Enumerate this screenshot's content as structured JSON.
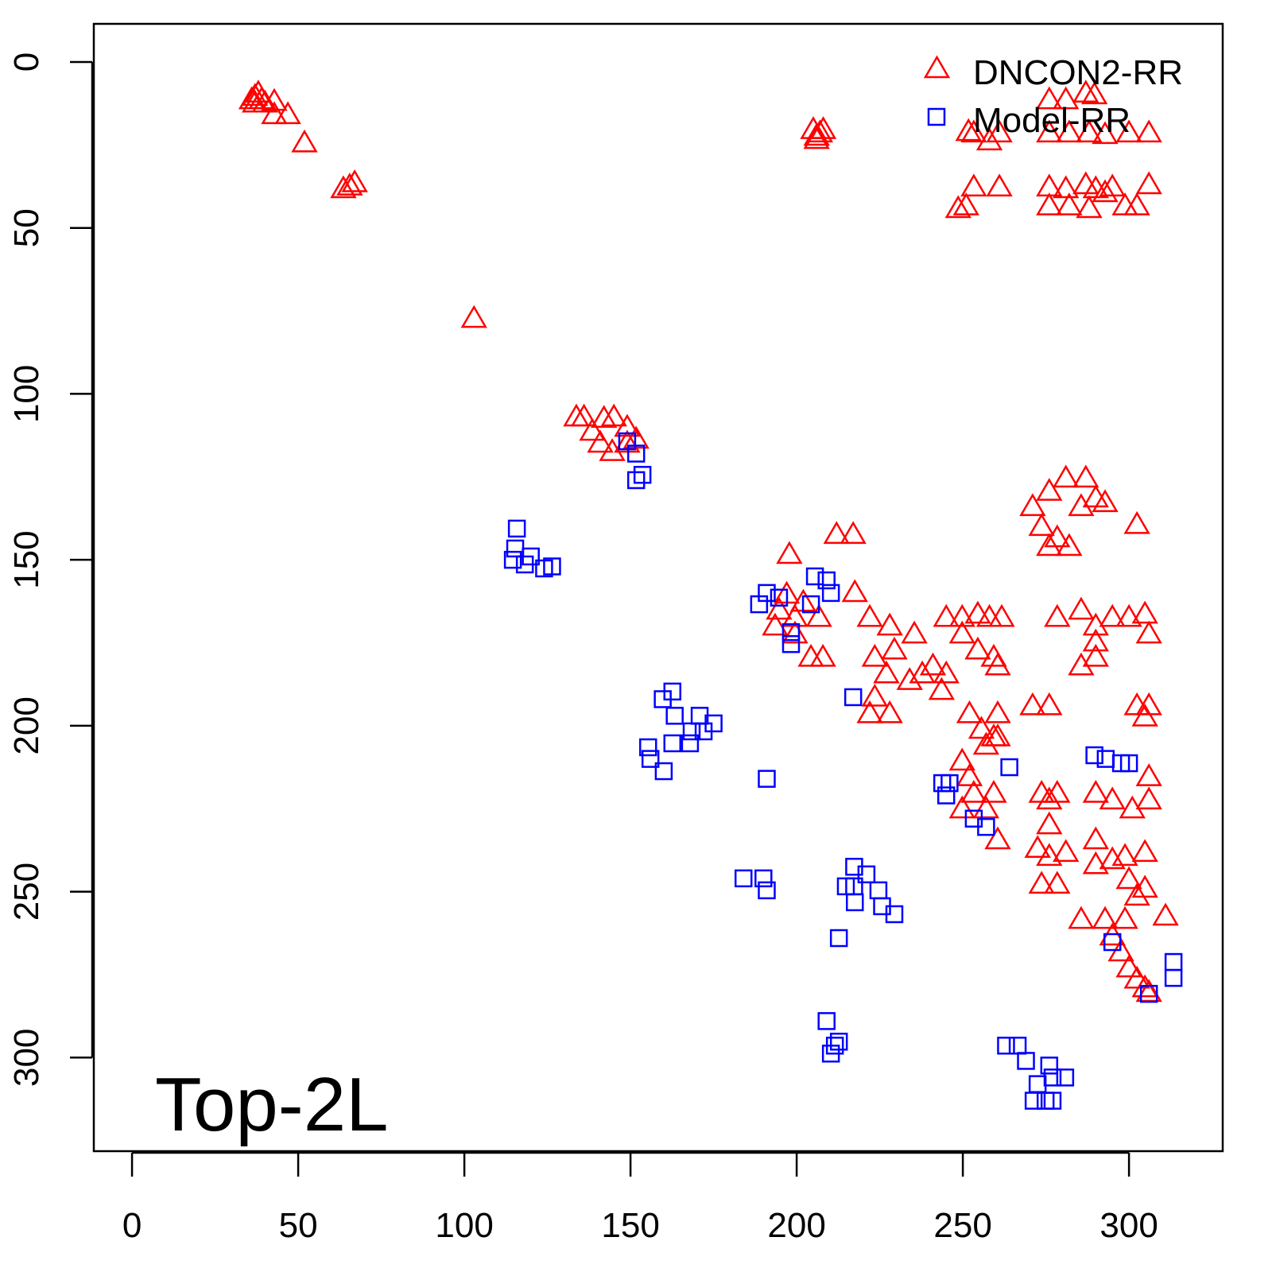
{
  "chart_data": {
    "type": "scatter",
    "title": "",
    "annotation": "Top-2L",
    "xlabel": "",
    "ylabel": "",
    "xlim": [
      -11.5,
      328.2
    ],
    "ylim": [
      328.2,
      -11.5
    ],
    "y_reversed": true,
    "grid": false,
    "legend_position": "top-right",
    "xticks": [
      0,
      50,
      100,
      150,
      200,
      250,
      300
    ],
    "yticks": [
      0,
      50,
      100,
      150,
      200,
      250,
      300
    ],
    "xtick_labels": [
      "0",
      "50",
      "100",
      "150",
      "200",
      "250",
      "300"
    ],
    "ytick_labels": [
      "0",
      "50",
      "100",
      "150",
      "200",
      "250",
      "300"
    ],
    "series": [
      {
        "name": "DNCON2-RR",
        "marker": "triangle",
        "color": "#ff0000",
        "points": [
          [
            36,
            12
          ],
          [
            37,
            11
          ],
          [
            38,
            10
          ],
          [
            39,
            12
          ],
          [
            40,
            13
          ],
          [
            37,
            13
          ],
          [
            42.8,
            12.5
          ],
          [
            42.8,
            16.5
          ],
          [
            46.9,
            16.5
          ],
          [
            51.9,
            25
          ],
          [
            65.5,
            38
          ],
          [
            63.6,
            38.8
          ],
          [
            67,
            37
          ],
          [
            102.9,
            77.9
          ],
          [
            205,
            21
          ],
          [
            206,
            23
          ],
          [
            207,
            22
          ],
          [
            208,
            21
          ],
          [
            206,
            24
          ],
          [
            133.7,
            107.6
          ],
          [
            136,
            107.6
          ],
          [
            142,
            108
          ],
          [
            145,
            107.6
          ],
          [
            149,
            110.7
          ],
          [
            140.9,
            115.5
          ],
          [
            144.5,
            118
          ],
          [
            149,
            115.5
          ],
          [
            151.7,
            114.3
          ],
          [
            138.5,
            111.9
          ],
          [
            251.7,
            21.6
          ],
          [
            253.3,
            22
          ],
          [
            258,
            24.4
          ],
          [
            261,
            22
          ],
          [
            251,
            44
          ],
          [
            248.6,
            44.8
          ],
          [
            253.3,
            38.3
          ],
          [
            261,
            38.3
          ],
          [
            276,
            12
          ],
          [
            281,
            12
          ],
          [
            287,
            10
          ],
          [
            289.6,
            10.5
          ],
          [
            276,
            22
          ],
          [
            282,
            22
          ],
          [
            288,
            22
          ],
          [
            292.8,
            22.5
          ],
          [
            300,
            22
          ],
          [
            306,
            22
          ],
          [
            276,
            38.3
          ],
          [
            281,
            38.8
          ],
          [
            287,
            37.6
          ],
          [
            290,
            38.8
          ],
          [
            292.8,
            40
          ],
          [
            282,
            44
          ],
          [
            288,
            44.8
          ],
          [
            298.8,
            44
          ],
          [
            302.4,
            44
          ],
          [
            295,
            38.3
          ],
          [
            306,
            37.6
          ],
          [
            276,
            44
          ],
          [
            212,
            143
          ],
          [
            217,
            143
          ],
          [
            197.8,
            149
          ],
          [
            217.5,
            160.5
          ],
          [
            271,
            134.6
          ],
          [
            276,
            130
          ],
          [
            281,
            126
          ],
          [
            287,
            126
          ],
          [
            290,
            132
          ],
          [
            273.7,
            140.6
          ],
          [
            278.4,
            144
          ],
          [
            276,
            146.6
          ],
          [
            282,
            146.6
          ],
          [
            302.4,
            140
          ],
          [
            285.6,
            134.6
          ],
          [
            292.8,
            133.4
          ],
          [
            194.7,
            165.8
          ],
          [
            199.5,
            168
          ],
          [
            202,
            163.4
          ],
          [
            206.7,
            168
          ],
          [
            193.5,
            170.6
          ],
          [
            199.5,
            173
          ],
          [
            204.3,
            180
          ],
          [
            207.9,
            180
          ],
          [
            197,
            161
          ],
          [
            222,
            168
          ],
          [
            228,
            170.6
          ],
          [
            223.5,
            180
          ],
          [
            227,
            185
          ],
          [
            223.5,
            192
          ],
          [
            228,
            197
          ],
          [
            222,
            197
          ],
          [
            229.4,
            177.8
          ],
          [
            235.4,
            173
          ],
          [
            234,
            187
          ],
          [
            237.8,
            185
          ],
          [
            241,
            182.6
          ],
          [
            245,
            185
          ],
          [
            243.6,
            190
          ],
          [
            245,
            168
          ],
          [
            249.8,
            168
          ],
          [
            254.5,
            167
          ],
          [
            258,
            168
          ],
          [
            261.7,
            168
          ],
          [
            249.8,
            173
          ],
          [
            254.5,
            177.8
          ],
          [
            259.3,
            180
          ],
          [
            260.5,
            182.6
          ],
          [
            252,
            197
          ],
          [
            255.6,
            201.7
          ],
          [
            260.5,
            197
          ],
          [
            260.5,
            204
          ],
          [
            257,
            206.5
          ],
          [
            249.8,
            211.3
          ],
          [
            252,
            216
          ],
          [
            253.3,
            221
          ],
          [
            257,
            225.7
          ],
          [
            259.3,
            221
          ],
          [
            249.8,
            225.7
          ],
          [
            260.5,
            235
          ],
          [
            259.3,
            204
          ],
          [
            273.7,
            221
          ],
          [
            276,
            223
          ],
          [
            278.4,
            221
          ],
          [
            276,
            230.5
          ],
          [
            272.5,
            237.6
          ],
          [
            276,
            240
          ],
          [
            281,
            238.8
          ],
          [
            273.7,
            248.4
          ],
          [
            278.4,
            248.4
          ],
          [
            271,
            194.6
          ],
          [
            276,
            194.6
          ],
          [
            278.4,
            168
          ],
          [
            285.6,
            165.8
          ],
          [
            290,
            170.6
          ],
          [
            295,
            168
          ],
          [
            290,
            180
          ],
          [
            285.6,
            182.6
          ],
          [
            300,
            168
          ],
          [
            304.8,
            167
          ],
          [
            306,
            173
          ],
          [
            290,
            175.4
          ],
          [
            290,
            221
          ],
          [
            295,
            223
          ],
          [
            301,
            225.7
          ],
          [
            306,
            223
          ],
          [
            306,
            216
          ],
          [
            306,
            194.6
          ],
          [
            302.4,
            194.6
          ],
          [
            304.8,
            198
          ],
          [
            290,
            235
          ],
          [
            290,
            242.5
          ],
          [
            295,
            241
          ],
          [
            298.8,
            240
          ],
          [
            304.8,
            238.8
          ],
          [
            300,
            247
          ],
          [
            304.8,
            249.6
          ],
          [
            302.4,
            252
          ],
          [
            311,
            258
          ],
          [
            285.6,
            259
          ],
          [
            292.8,
            259
          ],
          [
            295,
            264
          ],
          [
            297.6,
            268.8
          ],
          [
            300,
            273.6
          ],
          [
            302.4,
            277
          ],
          [
            304.8,
            279.6
          ],
          [
            306,
            281
          ],
          [
            298.8,
            259
          ]
        ]
      },
      {
        "name": "Model-RR",
        "marker": "square",
        "color": "#0000ff",
        "points": [
          [
            115.8,
            140.6
          ],
          [
            115.3,
            146.6
          ],
          [
            114.6,
            150
          ],
          [
            118.2,
            151.4
          ],
          [
            124,
            152.6
          ],
          [
            126.4,
            152
          ],
          [
            120,
            149
          ],
          [
            149,
            114.3
          ],
          [
            151.7,
            118
          ],
          [
            151.7,
            126
          ],
          [
            153.6,
            124.4
          ],
          [
            159.7,
            192
          ],
          [
            162.6,
            189.7
          ],
          [
            163.3,
            197
          ],
          [
            155.3,
            206.5
          ],
          [
            156,
            210
          ],
          [
            160,
            213.7
          ],
          [
            162.6,
            205.3
          ],
          [
            168.4,
            201.7
          ],
          [
            170.8,
            197
          ],
          [
            172,
            201.7
          ],
          [
            175,
            199.3
          ],
          [
            167.9,
            205.3
          ],
          [
            191,
            216
          ],
          [
            188.7,
            163.4
          ],
          [
            191,
            160
          ],
          [
            194.7,
            161.4
          ],
          [
            204.3,
            163.4
          ],
          [
            205.5,
            155
          ],
          [
            209,
            156.2
          ],
          [
            210.3,
            160
          ],
          [
            198.3,
            171.8
          ],
          [
            198.3,
            175.4
          ],
          [
            217,
            191.4
          ],
          [
            184,
            246
          ],
          [
            190,
            246
          ],
          [
            191,
            249.6
          ],
          [
            217.3,
            242.5
          ],
          [
            217.3,
            248.4
          ],
          [
            214.8,
            248.4
          ],
          [
            221,
            244.8
          ],
          [
            217.5,
            253.2
          ],
          [
            224.6,
            249.6
          ],
          [
            225.7,
            254.4
          ],
          [
            229.4,
            256.8
          ],
          [
            212.7,
            264
          ],
          [
            209,
            289
          ],
          [
            211.5,
            296.4
          ],
          [
            210.3,
            298.8
          ],
          [
            212.7,
            295.2
          ],
          [
            243.8,
            217.3
          ],
          [
            246,
            217.3
          ],
          [
            245,
            221
          ],
          [
            253.3,
            228
          ],
          [
            257,
            230.5
          ],
          [
            264,
            212.5
          ],
          [
            289.6,
            208.9
          ],
          [
            293,
            210
          ],
          [
            297.6,
            211.3
          ],
          [
            300,
            211.3
          ],
          [
            295,
            265.2
          ],
          [
            313.4,
            271.2
          ],
          [
            313.4,
            276
          ],
          [
            306,
            280.8
          ],
          [
            263,
            296.4
          ],
          [
            266.5,
            296.4
          ],
          [
            269,
            301
          ],
          [
            271.3,
            313
          ],
          [
            276,
            302.4
          ],
          [
            277,
            306
          ],
          [
            280.8,
            306
          ],
          [
            274.9,
            313
          ],
          [
            277,
            313
          ],
          [
            272.5,
            308
          ]
        ]
      }
    ]
  }
}
